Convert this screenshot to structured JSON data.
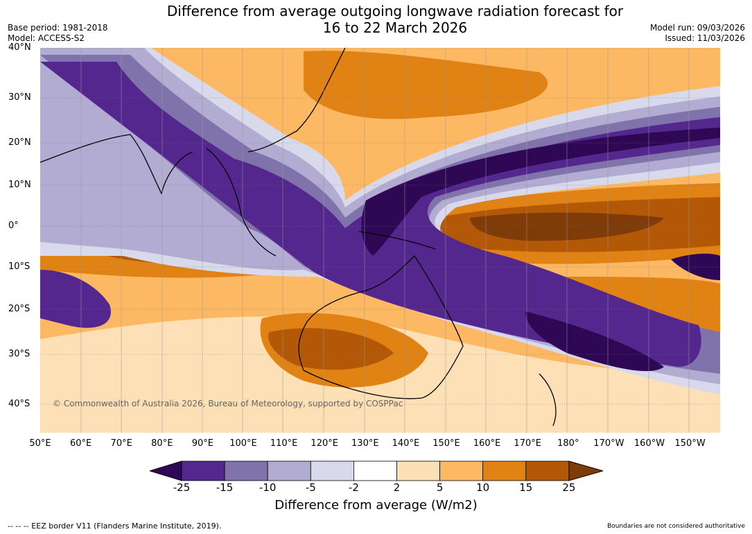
{
  "header": {
    "title_line1": "Difference from average outgoing longwave radiation forecast for",
    "title_line2": "16 to 22 March 2026",
    "base_period": "Base period: 1981-2018",
    "model": "Model: ACCESS-S2",
    "model_run": "Model run: 09/03/2026",
    "issued": "Issued: 11/03/2026"
  },
  "map": {
    "copyright": "© Commonwealth of Australia 2026, Bureau of Meteorology, supported by COSPPac",
    "lat_labels": [
      "40°N",
      "30°N",
      "20°N",
      "10°N",
      "0°",
      "10°S",
      "20°S",
      "30°S",
      "40°S"
    ],
    "lon_labels": [
      "50°E",
      "60°E",
      "70°E",
      "80°E",
      "90°E",
      "100°E",
      "110°E",
      "120°E",
      "130°E",
      "140°E",
      "150°E",
      "160°E",
      "170°E",
      "180°",
      "170°W",
      "160°W",
      "150°W"
    ]
  },
  "colorbar": {
    "ticks": [
      "-25",
      "-15",
      "-10",
      "-5",
      "-2",
      "2",
      "5",
      "10",
      "15",
      "25"
    ],
    "colors": [
      "#2e0854",
      "#54278f",
      "#8073ac",
      "#b2abd2",
      "#d8daeb",
      "#ffffff",
      "#fee0b6",
      "#fdb863",
      "#e08214",
      "#b35806",
      "#7f3b08"
    ],
    "title": "Difference from average (W/m2)"
  },
  "footer": {
    "left": "--  --  -- EEZ border V11 (Flanders Marine Institute, 2019).",
    "right": "Boundaries are not considered authoritative"
  }
}
